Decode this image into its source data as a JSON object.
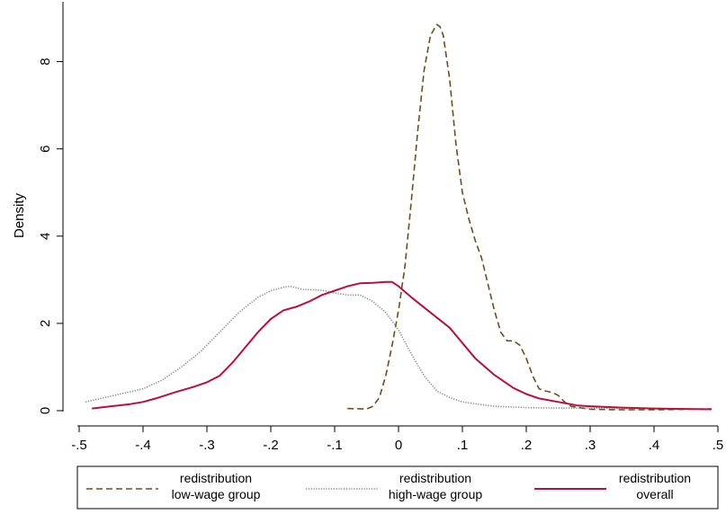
{
  "chart_data": {
    "type": "line",
    "title": "",
    "xlabel": "",
    "ylabel": "Density",
    "xlim": [
      -0.5,
      0.5
    ],
    "ylim": [
      0,
      9
    ],
    "x_ticks": [
      -0.5,
      -0.4,
      -0.3,
      -0.2,
      -0.1,
      0,
      0.1,
      0.2,
      0.3,
      0.4,
      0.5
    ],
    "x_tick_labels": [
      "-.5",
      "-.4",
      "-.3",
      "-.2",
      "-.1",
      "0",
      ".1",
      ".2",
      ".3",
      ".4",
      ".5"
    ],
    "y_ticks": [
      0,
      2,
      4,
      6,
      8
    ],
    "y_tick_labels": [
      "0",
      "2",
      "4",
      "6",
      "8"
    ],
    "grid": false,
    "legend_position": "bottom",
    "series": [
      {
        "name": "redistribution low-wage group",
        "legend_lines": [
          "redistribution",
          "low-wage group"
        ],
        "color": "#6b4e1e",
        "style": "dashed",
        "x": [
          -0.08,
          -0.05,
          -0.04,
          -0.03,
          -0.02,
          -0.01,
          0.0,
          0.01,
          0.02,
          0.03,
          0.04,
          0.05,
          0.06,
          0.065,
          0.07,
          0.08,
          0.09,
          0.1,
          0.11,
          0.12,
          0.13,
          0.14,
          0.15,
          0.16,
          0.17,
          0.18,
          0.19,
          0.2,
          0.21,
          0.22,
          0.23,
          0.24,
          0.25,
          0.26,
          0.27,
          0.3,
          0.35,
          0.4,
          0.45,
          0.49
        ],
        "y": [
          0.05,
          0.04,
          0.1,
          0.3,
          0.8,
          1.5,
          2.3,
          3.3,
          4.8,
          6.4,
          7.8,
          8.6,
          8.85,
          8.8,
          8.6,
          7.6,
          6.1,
          5.0,
          4.4,
          3.9,
          3.5,
          2.9,
          2.3,
          1.8,
          1.6,
          1.6,
          1.5,
          1.2,
          0.8,
          0.5,
          0.45,
          0.42,
          0.35,
          0.2,
          0.1,
          0.03,
          0.02,
          0.02,
          0.03,
          0.04
        ]
      },
      {
        "name": "redistribution high-wage group",
        "legend_lines": [
          "redistribution",
          "high-wage group"
        ],
        "color": "#888888",
        "style": "dotted",
        "x": [
          -0.49,
          -0.46,
          -0.43,
          -0.4,
          -0.37,
          -0.34,
          -0.31,
          -0.28,
          -0.25,
          -0.22,
          -0.2,
          -0.18,
          -0.17,
          -0.15,
          -0.12,
          -0.1,
          -0.08,
          -0.06,
          -0.04,
          -0.02,
          0.0,
          0.02,
          0.04,
          0.06,
          0.08,
          0.1,
          0.15,
          0.2,
          0.25,
          0.3,
          0.35,
          0.4,
          0.45,
          0.49
        ],
        "y": [
          0.2,
          0.3,
          0.4,
          0.5,
          0.7,
          1.0,
          1.35,
          1.8,
          2.25,
          2.6,
          2.75,
          2.83,
          2.85,
          2.78,
          2.76,
          2.7,
          2.65,
          2.65,
          2.5,
          2.25,
          1.85,
          1.3,
          0.8,
          0.45,
          0.3,
          0.2,
          0.1,
          0.07,
          0.06,
          0.06,
          0.05,
          0.05,
          0.04,
          0.04
        ]
      },
      {
        "name": "redistribution overall",
        "legend_lines": [
          "redistribution",
          "overall"
        ],
        "color": "#b4123c",
        "style": "solid",
        "x": [
          -0.48,
          -0.45,
          -0.42,
          -0.4,
          -0.38,
          -0.35,
          -0.32,
          -0.3,
          -0.28,
          -0.26,
          -0.24,
          -0.22,
          -0.2,
          -0.18,
          -0.16,
          -0.14,
          -0.12,
          -0.1,
          -0.08,
          -0.06,
          -0.04,
          -0.02,
          -0.01,
          0.0,
          0.02,
          0.05,
          0.08,
          0.1,
          0.12,
          0.15,
          0.18,
          0.2,
          0.22,
          0.25,
          0.28,
          0.3,
          0.35,
          0.4,
          0.45,
          0.49
        ],
        "y": [
          0.05,
          0.1,
          0.15,
          0.2,
          0.28,
          0.42,
          0.55,
          0.65,
          0.8,
          1.1,
          1.45,
          1.8,
          2.1,
          2.3,
          2.38,
          2.5,
          2.65,
          2.75,
          2.85,
          2.92,
          2.93,
          2.95,
          2.95,
          2.85,
          2.6,
          2.25,
          1.9,
          1.55,
          1.2,
          0.82,
          0.52,
          0.38,
          0.28,
          0.2,
          0.12,
          0.1,
          0.07,
          0.05,
          0.04,
          0.03
        ]
      }
    ]
  }
}
